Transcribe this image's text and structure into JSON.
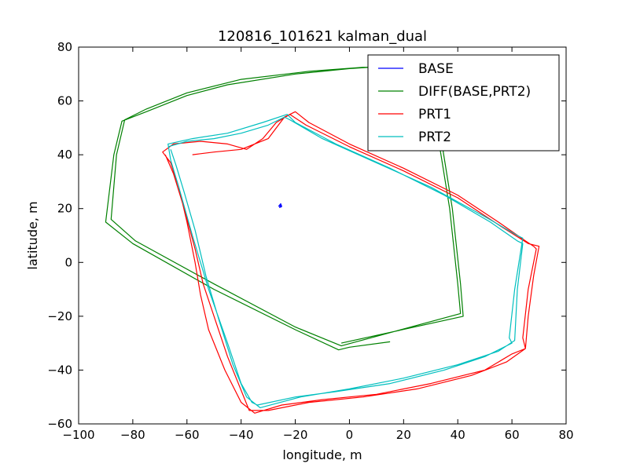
{
  "chart_data": {
    "type": "line",
    "title": "120816_101621 kalman_dual",
    "xlabel": "longitude, m",
    "ylabel": "latitude, m",
    "xlim": [
      -100,
      80
    ],
    "ylim": [
      -60,
      80
    ],
    "xticks": [
      -100,
      -80,
      -60,
      -40,
      -20,
      0,
      20,
      40,
      60,
      80
    ],
    "yticks": [
      -60,
      -40,
      -20,
      0,
      20,
      40,
      60,
      80
    ],
    "xtick_labels": [
      "−100",
      "−80",
      "−60",
      "−40",
      "−20",
      "0",
      "20",
      "40",
      "60",
      "80"
    ],
    "ytick_labels": [
      "−60",
      "−40",
      "−20",
      "0",
      "20",
      "40",
      "60",
      "80"
    ],
    "grid": false,
    "legend_position": "top-right",
    "series": [
      {
        "name": "BASE",
        "color": "#0000ff",
        "points": [
          [
            -25.6,
            21.5
          ],
          [
            -25.2,
            20.6
          ],
          [
            -26.1,
            20.9
          ],
          [
            -25.4,
            21.8
          ],
          [
            -25.0,
            20.8
          ],
          [
            -25.8,
            20.4
          ],
          [
            -25.3,
            21.2
          ]
        ]
      },
      {
        "name": "DIFF(BASE,PRT2)",
        "color": "#008000",
        "points": [
          [
            15,
            -29.5
          ],
          [
            0,
            -31.5
          ],
          [
            -4,
            -32.5
          ],
          [
            -20,
            -25
          ],
          [
            -50,
            -10
          ],
          [
            -80,
            7
          ],
          [
            -90,
            15
          ],
          [
            -87,
            40
          ],
          [
            -84,
            52.5
          ],
          [
            -75,
            56
          ],
          [
            -60,
            62
          ],
          [
            -45,
            66
          ],
          [
            -20,
            70
          ],
          [
            0,
            72
          ],
          [
            15,
            73
          ],
          [
            25,
            73
          ],
          [
            33,
            45
          ],
          [
            37,
            20
          ],
          [
            40,
            -8
          ],
          [
            41,
            -19
          ],
          [
            -3,
            -31
          ],
          [
            -20,
            -24
          ],
          [
            -50,
            -8
          ],
          [
            -79,
            8
          ],
          [
            -88,
            16
          ],
          [
            -86,
            40
          ],
          [
            -83,
            53
          ],
          [
            -75,
            57
          ],
          [
            -60,
            63
          ],
          [
            -40,
            68
          ],
          [
            -15,
            71
          ],
          [
            5,
            72.5
          ],
          [
            26,
            72.5
          ],
          [
            34,
            45
          ],
          [
            38,
            20
          ],
          [
            41,
            -8
          ],
          [
            42,
            -20
          ],
          [
            -3,
            -30
          ]
        ]
      },
      {
        "name": "PRT1",
        "color": "#ff0000",
        "points": [
          [
            -58,
            40
          ],
          [
            -50,
            41
          ],
          [
            -40,
            42
          ],
          [
            -30,
            46
          ],
          [
            -24,
            54
          ],
          [
            -20,
            56
          ],
          [
            -15,
            52
          ],
          [
            0,
            44
          ],
          [
            20,
            35
          ],
          [
            40,
            25
          ],
          [
            55,
            15
          ],
          [
            65,
            8
          ],
          [
            68,
            6
          ],
          [
            69,
            5
          ],
          [
            66,
            -10
          ],
          [
            64,
            -28
          ],
          [
            65,
            -32
          ],
          [
            60,
            -34
          ],
          [
            50,
            -40
          ],
          [
            30,
            -45
          ],
          [
            10,
            -49
          ],
          [
            -10,
            -51
          ],
          [
            -25,
            -53
          ],
          [
            -35,
            -56
          ],
          [
            -40,
            -52
          ],
          [
            -46,
            -40
          ],
          [
            -52,
            -25
          ],
          [
            -55,
            -12
          ],
          [
            -57,
            0
          ],
          [
            -60,
            15
          ],
          [
            -63,
            28
          ],
          [
            -66,
            37
          ],
          [
            -69,
            41
          ],
          [
            -65,
            44
          ],
          [
            -55,
            45
          ],
          [
            -45,
            44
          ],
          [
            -38,
            42
          ],
          [
            -32,
            46
          ],
          [
            -27,
            52
          ],
          [
            -22,
            55
          ],
          [
            -16,
            51
          ],
          [
            0,
            43
          ],
          [
            20,
            34
          ],
          [
            40,
            24
          ],
          [
            55,
            14
          ],
          [
            66,
            7
          ],
          [
            70,
            6
          ],
          [
            68,
            -5
          ],
          [
            66,
            -20
          ],
          [
            65,
            -32
          ],
          [
            58,
            -37
          ],
          [
            45,
            -42
          ],
          [
            25,
            -47
          ],
          [
            5,
            -50
          ],
          [
            -15,
            -52
          ],
          [
            -30,
            -55
          ],
          [
            -37,
            -55
          ],
          [
            -45,
            -35
          ],
          [
            -50,
            -20
          ],
          [
            -54,
            -8
          ],
          [
            -57,
            5
          ],
          [
            -61,
            20
          ],
          [
            -65,
            33
          ],
          [
            -68,
            40
          ]
        ]
      },
      {
        "name": "PRT2",
        "color": "#00bfbf",
        "points": [
          [
            -67,
            43
          ],
          [
            -60,
            45
          ],
          [
            -50,
            46
          ],
          [
            -40,
            48
          ],
          [
            -30,
            51
          ],
          [
            -24,
            54
          ],
          [
            -22,
            53
          ],
          [
            -10,
            46
          ],
          [
            10,
            37
          ],
          [
            30,
            28
          ],
          [
            50,
            17
          ],
          [
            62,
            10
          ],
          [
            64,
            9
          ],
          [
            61,
            -10
          ],
          [
            59,
            -28
          ],
          [
            60,
            -30
          ],
          [
            50,
            -35
          ],
          [
            35,
            -40
          ],
          [
            15,
            -45
          ],
          [
            -5,
            -48
          ],
          [
            -20,
            -50
          ],
          [
            -34,
            -53
          ],
          [
            -36,
            -52
          ],
          [
            -40,
            -45
          ],
          [
            -45,
            -30
          ],
          [
            -52,
            -10
          ],
          [
            -58,
            10
          ],
          [
            -63,
            28
          ],
          [
            -66,
            38
          ],
          [
            -67,
            44
          ],
          [
            -58,
            46
          ],
          [
            -45,
            48
          ],
          [
            -32,
            52
          ],
          [
            -23,
            55
          ],
          [
            -20,
            52
          ],
          [
            -5,
            44
          ],
          [
            15,
            35
          ],
          [
            35,
            25
          ],
          [
            52,
            15
          ],
          [
            62,
            8
          ],
          [
            64,
            7
          ],
          [
            62,
            -10
          ],
          [
            61,
            -29
          ],
          [
            55,
            -33
          ],
          [
            40,
            -38
          ],
          [
            20,
            -43
          ],
          [
            0,
            -47
          ],
          [
            -18,
            -50
          ],
          [
            -33,
            -54
          ],
          [
            -38,
            -50
          ],
          [
            -43,
            -38
          ],
          [
            -48,
            -22
          ],
          [
            -53,
            -5
          ],
          [
            -57,
            12
          ],
          [
            -61,
            26
          ],
          [
            -64,
            36
          ],
          [
            -66,
            42
          ]
        ]
      }
    ]
  }
}
